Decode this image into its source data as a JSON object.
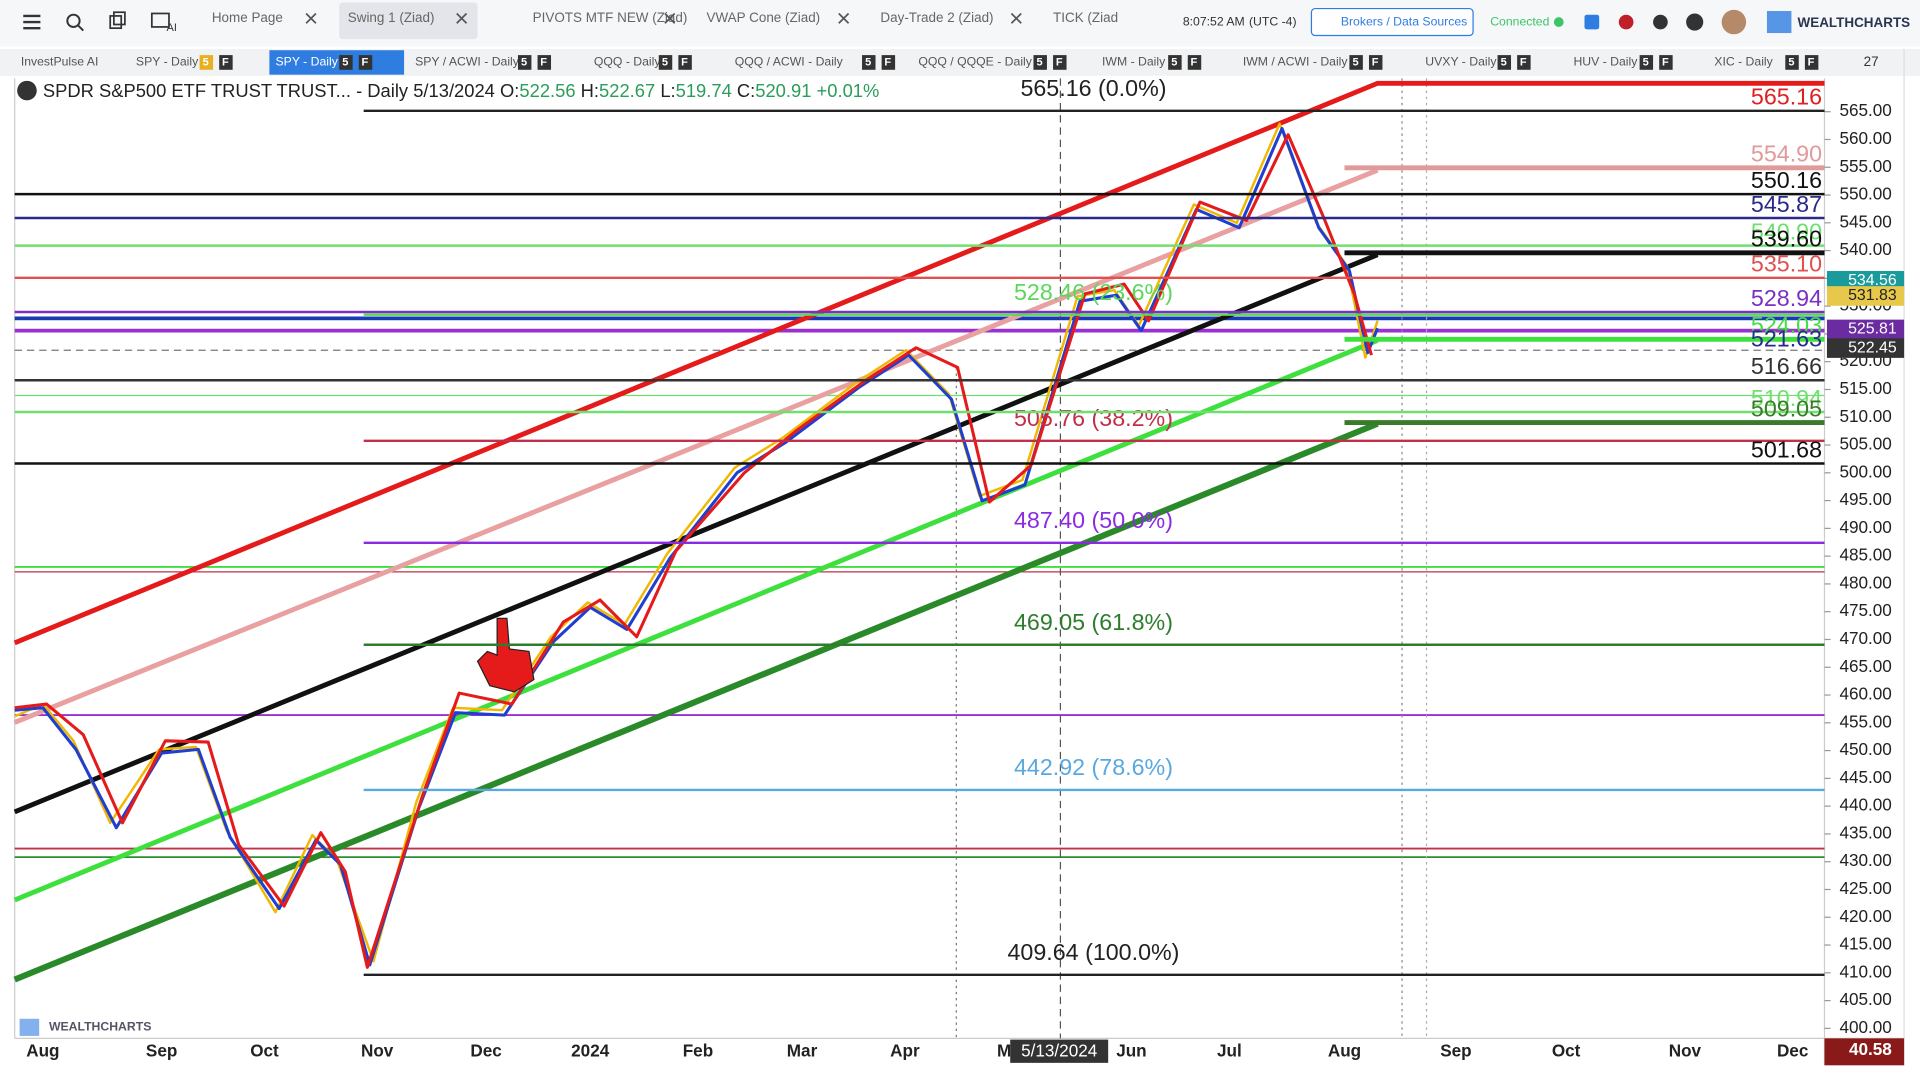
{
  "toolbar": {
    "tabs": [
      "Home Page",
      "Swing 1 (Ziad)",
      "PIVOTS MTF NEW (Ziad)",
      "VWAP Cone (Ziad)",
      "Day-Trade 2 (Ziad)",
      "TICK (Ziad"
    ],
    "ai": "AI",
    "time": "8:07:52 AM",
    "timezone": "(UTC -4)",
    "brokers": "Brokers / Data Sources",
    "status": "Connected",
    "logo": "WEALTHCHARTS"
  },
  "chart_tabs": {
    "items": [
      "InvestPulse AI",
      "SPY - Daily",
      "SPY - Daily",
      "SPY / ACWI - Daily",
      "QQQ - Daily",
      "QQQ / ACWI - Daily",
      "QQQ / QQQE - Daily",
      "IWM - Daily",
      "IWM / ACWI - Daily",
      "UVXY - Daily",
      "HUV - Daily",
      "XIC - Daily"
    ],
    "badges": [
      "5",
      "F"
    ],
    "more": "27"
  },
  "chart": {
    "symbol": "SPDR S&P500 ETF TRUST TRUST...",
    "interval": "- Daily",
    "date": "5/13/2024",
    "ohlc": [
      {
        "label": "O:",
        "value": "522.56"
      },
      {
        "label": "H:",
        "value": "522.67"
      },
      {
        "label": "L:",
        "value": "519.74"
      },
      {
        "label": "C:",
        "value": "520.91"
      }
    ],
    "change": "+0.01%",
    "ylim": [
      398.2,
      571
    ],
    "yticks": [
      {
        "value": 400,
        "label": "400.00"
      },
      {
        "value": 405,
        "label": "405.00"
      },
      {
        "value": 410,
        "label": "410.00"
      },
      {
        "value": 415,
        "label": "415.00"
      },
      {
        "value": 420,
        "label": "420.00"
      },
      {
        "value": 425,
        "label": "425.00"
      },
      {
        "value": 430,
        "label": "430.00"
      },
      {
        "value": 435,
        "label": "435.00"
      },
      {
        "value": 440,
        "label": "440.00"
      },
      {
        "value": 445,
        "label": "445.00"
      },
      {
        "value": 450,
        "label": "450.00"
      },
      {
        "value": 455,
        "label": "455.00"
      },
      {
        "value": 460,
        "label": "460.00"
      },
      {
        "value": 465,
        "label": "465.00"
      },
      {
        "value": 470,
        "label": "470.00"
      },
      {
        "value": 475,
        "label": "475.00"
      },
      {
        "value": 480,
        "label": "480.00"
      },
      {
        "value": 485,
        "label": "485.00"
      },
      {
        "value": 490,
        "label": "490.00"
      },
      {
        "value": 495,
        "label": "495.00"
      },
      {
        "value": 500,
        "label": "500.00"
      },
      {
        "value": 505,
        "label": "505.00"
      },
      {
        "value": 510,
        "label": "510.00"
      },
      {
        "value": 515,
        "label": "515.00"
      },
      {
        "value": 520,
        "label": "520.00"
      },
      {
        "value": 525,
        "label": "525.00"
      },
      {
        "value": 530,
        "label": "530.00"
      },
      {
        "value": 535,
        "label": "535.00"
      },
      {
        "value": 540,
        "label": "540.00"
      },
      {
        "value": 545,
        "label": "545.00"
      },
      {
        "value": 550,
        "label": "550.00"
      },
      {
        "value": 555,
        "label": "555.00"
      },
      {
        "value": 560,
        "label": "560.00"
      },
      {
        "value": 565,
        "label": "565.00"
      }
    ],
    "months": [
      "Aug",
      "Sep",
      "Oct",
      "Nov",
      "Dec",
      "2024",
      "Feb",
      "Mar",
      "Apr",
      "M",
      "Jun",
      "Jul",
      "Aug",
      "Sep",
      "Oct",
      "Nov",
      "Dec"
    ],
    "cursor_date": "5/13/2024",
    "fib": [
      {
        "value": 565.16,
        "label": "565.16 (0.0%)",
        "color": "#222222"
      },
      {
        "value": 528.46,
        "label": "528.46 (23.6%)",
        "color": "#5ad85a"
      },
      {
        "value": 505.76,
        "label": "505.76 (38.2%)",
        "color": "#c0304a"
      },
      {
        "value": 487.4,
        "label": "487.40 (50.0%)",
        "color": "#8a2be2"
      },
      {
        "value": 469.05,
        "label": "469.05 (61.8%)",
        "color": "#2e7d2e"
      },
      {
        "value": 442.92,
        "label": "442.92 (78.6%)",
        "color": "#5aa8e0"
      },
      {
        "value": 409.64,
        "label": "409.64 (100.0%)",
        "color": "#222222"
      }
    ],
    "levels": [
      {
        "value": 565.16,
        "label": "565.16",
        "color": "#e02020",
        "span": "none"
      },
      {
        "value": 554.9,
        "label": "554.90",
        "color": "#e09a9a",
        "span": "right"
      },
      {
        "value": 550.16,
        "label": "550.16",
        "color": "#111111",
        "span": "full"
      },
      {
        "value": 545.87,
        "label": "545.87",
        "color": "#2a2a8a",
        "span": "full"
      },
      {
        "value": 540.9,
        "label": "540.90",
        "color": "#6fe06f",
        "span": "full"
      },
      {
        "value": 539.6,
        "label": "539.60",
        "color": "#111111",
        "span": "right"
      },
      {
        "value": 535.1,
        "label": "535.10",
        "color": "#e05050",
        "span": "full"
      },
      {
        "value": 528.94,
        "label": "528.94",
        "color": "#7a30c0",
        "span": "full"
      },
      {
        "value": 524.03,
        "label": "524.03",
        "color": "#3ee03e",
        "span": "right"
      },
      {
        "value": 521.63,
        "label": "521.63",
        "color": "#2a2a8a",
        "span": "none"
      },
      {
        "value": 516.66,
        "label": "516.66",
        "color": "#333333",
        "span": "full"
      },
      {
        "value": 510.94,
        "label": "510.94",
        "color": "#6fe06f",
        "span": "full"
      },
      {
        "value": 509.05,
        "label": "509.05",
        "color": "#3a7a2a",
        "span": "right"
      },
      {
        "value": 501.68,
        "label": "501.68",
        "color": "#111111",
        "span": "full"
      }
    ],
    "axis_badges": [
      {
        "value": 534.56,
        "label": "534.56",
        "color": "#1a9b9b"
      },
      {
        "value": 531.83,
        "label": "531.83",
        "color": "#e8c84a"
      },
      {
        "value": 525.81,
        "label": "525.81",
        "color": "#6a2ca0"
      },
      {
        "value": 522.45,
        "label": "522.45",
        "color": "#333333"
      }
    ],
    "indicator_badge": "40.58",
    "watermark": "WEALTHCHARTS"
  }
}
